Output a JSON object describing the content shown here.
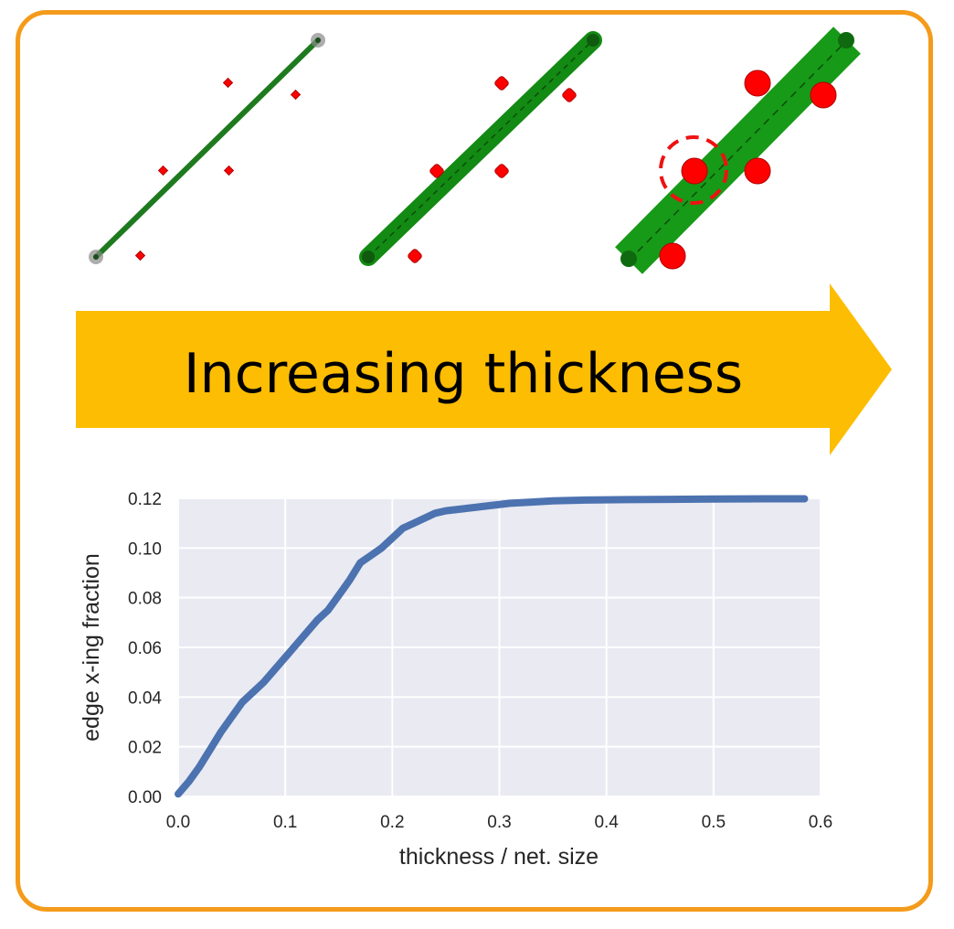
{
  "arrow": {
    "label": "Increasing thickness",
    "color": "#fdbd02"
  },
  "frame": {
    "color": "#f49b1b"
  },
  "panels": [
    {
      "stage": "thin",
      "line_color": "#1e7a1e"
    },
    {
      "stage": "medium",
      "line_color": "#138a13"
    },
    {
      "stage": "thick",
      "line_color": "#179a17",
      "highlight": "dashed-circle"
    }
  ],
  "node_color": "#ff0000",
  "chart_data": {
    "type": "line",
    "title": "",
    "xlabel": "thickness / net. size",
    "ylabel": "edge x-ing fraction",
    "xlim": [
      0.0,
      0.6
    ],
    "ylim": [
      0.0,
      0.12
    ],
    "xticks": [
      "0.0",
      "0.1",
      "0.2",
      "0.3",
      "0.4",
      "0.5",
      "0.6"
    ],
    "yticks": [
      "0.00",
      "0.02",
      "0.04",
      "0.06",
      "0.08",
      "0.10",
      "0.12"
    ],
    "grid": true,
    "background": "#e9eaf2",
    "line_color": "#4c72b0",
    "series": [
      {
        "x": [
          0.0,
          0.01,
          0.02,
          0.03,
          0.04,
          0.05,
          0.06,
          0.07,
          0.08,
          0.09,
          0.1,
          0.11,
          0.12,
          0.13,
          0.14,
          0.15,
          0.16,
          0.17,
          0.18,
          0.19,
          0.2,
          0.21,
          0.22,
          0.23,
          0.24,
          0.25,
          0.27,
          0.29,
          0.31,
          0.33,
          0.35,
          0.38,
          0.42,
          0.46,
          0.5,
          0.55,
          0.585
        ],
        "y": [
          0.001,
          0.006,
          0.012,
          0.019,
          0.026,
          0.032,
          0.038,
          0.042,
          0.046,
          0.051,
          0.056,
          0.061,
          0.066,
          0.071,
          0.075,
          0.081,
          0.087,
          0.094,
          0.097,
          0.1,
          0.104,
          0.108,
          0.11,
          0.112,
          0.114,
          0.115,
          0.116,
          0.117,
          0.118,
          0.1185,
          0.119,
          0.1193,
          0.1195,
          0.1196,
          0.1197,
          0.1198,
          0.1198
        ]
      }
    ]
  }
}
